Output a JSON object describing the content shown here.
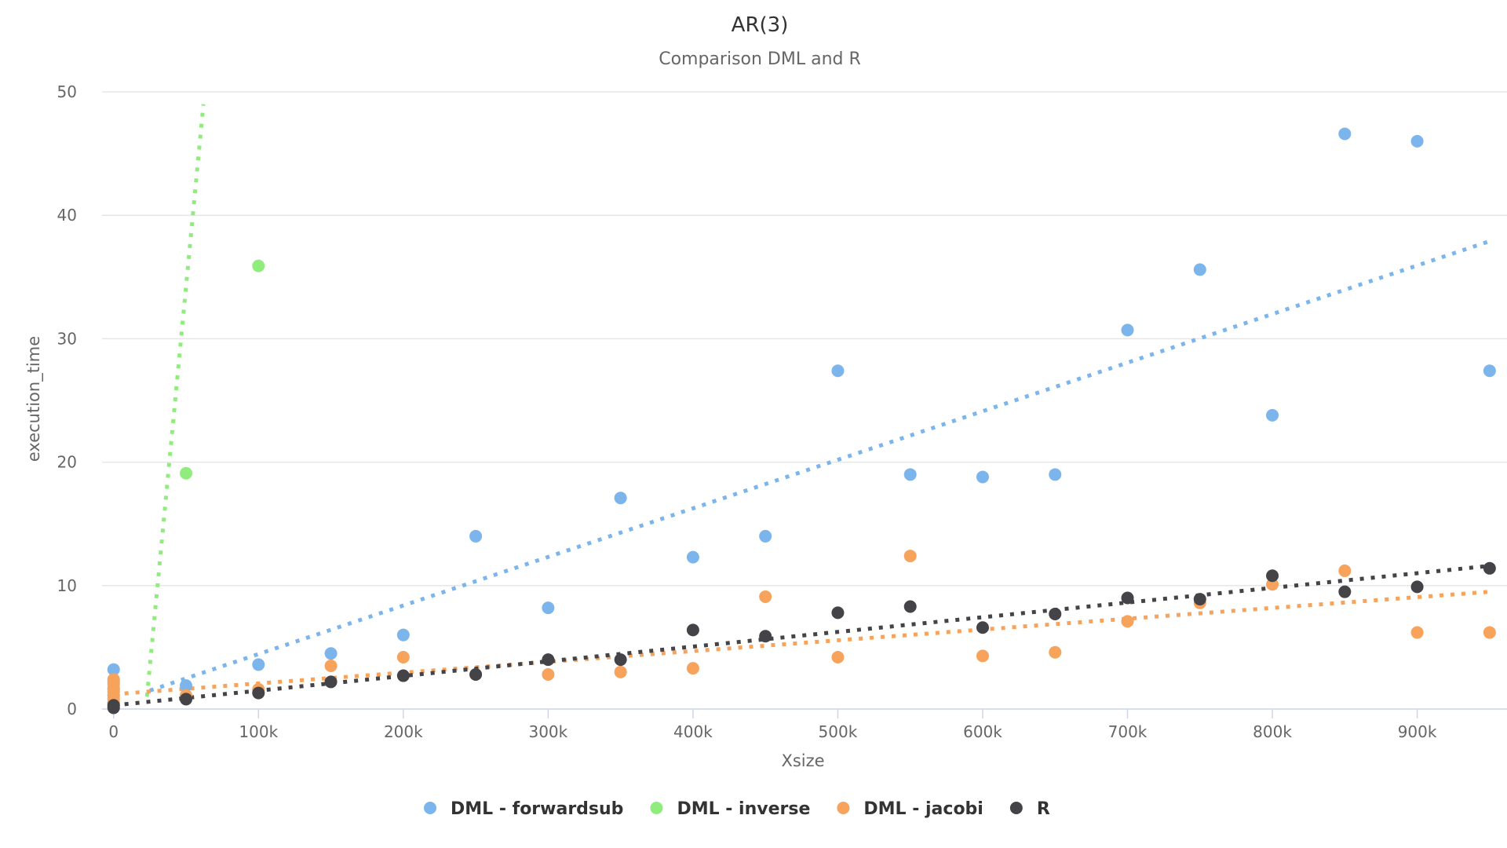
{
  "chart_data": {
    "type": "scatter",
    "title": "AR(3)",
    "subtitle": "Comparison DML and R",
    "xlabel": "Xsize",
    "ylabel": "execution_time",
    "xlim": [
      -8000,
      962000
    ],
    "ylim": [
      0,
      50
    ],
    "x_ticks": [
      0,
      100000,
      200000,
      300000,
      400000,
      500000,
      600000,
      700000,
      800000,
      900000
    ],
    "x_tick_labels": [
      "0",
      "100k",
      "200k",
      "300k",
      "400k",
      "500k",
      "600k",
      "700k",
      "800k",
      "900k"
    ],
    "y_ticks": [
      0,
      10,
      20,
      30,
      40,
      50
    ],
    "y_tick_labels": [
      "0",
      "10",
      "20",
      "30",
      "40",
      "50"
    ],
    "grid": "horizontal",
    "legend_position": "bottom-center",
    "series": [
      {
        "name": "DML - forwardsub",
        "color": "#7cb5ec",
        "points": [
          [
            0,
            3.2
          ],
          [
            0,
            2.2
          ],
          [
            0,
            1.6
          ],
          [
            0,
            1.1
          ],
          [
            0,
            0.5
          ],
          [
            50000,
            1.9
          ],
          [
            100000,
            3.6
          ],
          [
            150000,
            4.5
          ],
          [
            200000,
            6.0
          ],
          [
            250000,
            14.0
          ],
          [
            300000,
            8.2
          ],
          [
            350000,
            17.1
          ],
          [
            400000,
            12.3
          ],
          [
            450000,
            14.0
          ],
          [
            500000,
            27.4
          ],
          [
            550000,
            19.0
          ],
          [
            600000,
            18.8
          ],
          [
            650000,
            19.0
          ],
          [
            700000,
            30.7
          ],
          [
            750000,
            35.6
          ],
          [
            800000,
            23.8
          ],
          [
            850000,
            46.6
          ],
          [
            900000,
            46.0
          ],
          [
            950000,
            27.4
          ]
        ],
        "trendline": [
          [
            25000,
            1.5
          ],
          [
            950000,
            37.9
          ]
        ]
      },
      {
        "name": "DML - inverse",
        "color": "#90ed7d",
        "points": [
          [
            50000,
            19.1
          ],
          [
            100000,
            35.9
          ]
        ],
        "trendline": [
          [
            23000,
            1.0
          ],
          [
            62000,
            49.0
          ]
        ]
      },
      {
        "name": "DML - jacobi",
        "color": "#f7a35c",
        "points": [
          [
            0,
            2.4
          ],
          [
            0,
            2.0
          ],
          [
            0,
            1.7
          ],
          [
            0,
            1.4
          ],
          [
            0,
            1.1
          ],
          [
            0,
            0.8
          ],
          [
            0,
            0.5
          ],
          [
            0,
            0.3
          ],
          [
            50000,
            1.1
          ],
          [
            100000,
            1.6
          ],
          [
            150000,
            3.5
          ],
          [
            200000,
            4.2
          ],
          [
            250000,
            2.8
          ],
          [
            300000,
            2.8
          ],
          [
            350000,
            3.0
          ],
          [
            400000,
            3.3
          ],
          [
            450000,
            9.1
          ],
          [
            500000,
            4.2
          ],
          [
            550000,
            12.4
          ],
          [
            600000,
            4.3
          ],
          [
            650000,
            4.6
          ],
          [
            700000,
            7.1
          ],
          [
            750000,
            8.6
          ],
          [
            800000,
            10.1
          ],
          [
            850000,
            11.2
          ],
          [
            900000,
            6.2
          ],
          [
            950000,
            6.2
          ]
        ],
        "trendline": [
          [
            0,
            1.2
          ],
          [
            950000,
            9.5
          ]
        ]
      },
      {
        "name": "R",
        "color": "#434348",
        "points": [
          [
            0,
            0.3
          ],
          [
            0,
            0.1
          ],
          [
            50000,
            0.8
          ],
          [
            100000,
            1.3
          ],
          [
            150000,
            2.2
          ],
          [
            200000,
            2.7
          ],
          [
            250000,
            2.8
          ],
          [
            300000,
            4.0
          ],
          [
            350000,
            4.0
          ],
          [
            400000,
            6.4
          ],
          [
            450000,
            5.9
          ],
          [
            500000,
            7.8
          ],
          [
            550000,
            8.3
          ],
          [
            600000,
            6.6
          ],
          [
            650000,
            7.7
          ],
          [
            700000,
            9.0
          ],
          [
            750000,
            8.9
          ],
          [
            800000,
            10.8
          ],
          [
            850000,
            9.5
          ],
          [
            900000,
            9.9
          ],
          [
            950000,
            11.4
          ]
        ],
        "trendline": [
          [
            0,
            0.3
          ],
          [
            950000,
            11.6
          ]
        ]
      }
    ]
  }
}
